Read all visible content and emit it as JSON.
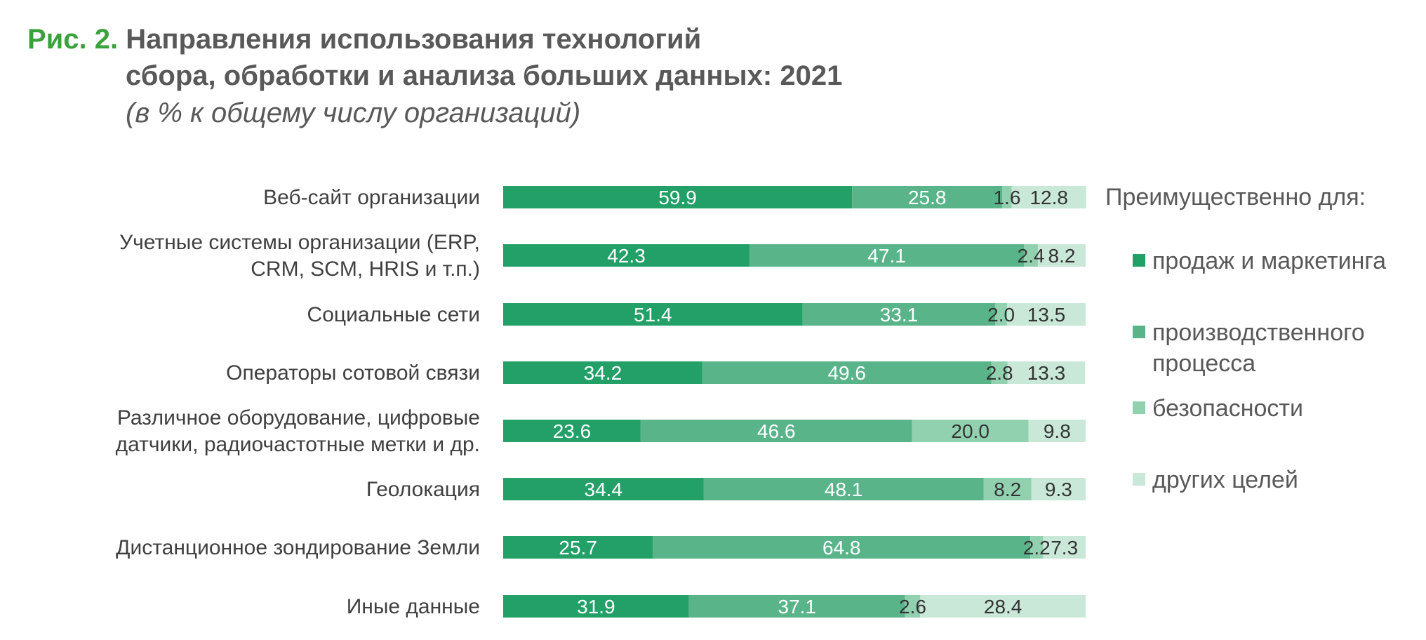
{
  "title": {
    "figure_label": "Рис. 2.",
    "line1": "Направления использования технологий",
    "line2": "сбора, обработки и анализа больших данных: 2021",
    "subtitle": "(в % к общему числу организаций)"
  },
  "colors": {
    "series1": "#23a068",
    "series2": "#5ab48a",
    "series3": "#92d1b0",
    "series4": "#c9e8d8",
    "label_dark": "#333333",
    "label_light": "#ffffff"
  },
  "chart_data": {
    "type": "bar",
    "orientation": "horizontal",
    "stacked": true,
    "title": "Направления использования технологий сбора, обработки и анализа больших данных: 2021",
    "subtitle": "(в % к общему числу организаций)",
    "categories": [
      [
        "Веб-сайт организации"
      ],
      [
        "Учетные системы организации (ERP,",
        "CRM, SCM, HRIS и т.п.)"
      ],
      [
        "Социальные сети"
      ],
      [
        "Операторы сотовой связи"
      ],
      [
        "Различное оборудование, цифровые",
        "датчики, радиочастотные метки и др."
      ],
      [
        "Геолокация"
      ],
      [
        "Дистанционное зондирование Земли"
      ],
      [
        "Иные данные"
      ]
    ],
    "legend_title": "Преимущественно для:",
    "legend_position": "right",
    "xlim": [
      0,
      100
    ],
    "grid": false,
    "series": [
      {
        "name": "продаж и маркетинга",
        "values": [
          59.9,
          42.3,
          51.4,
          34.2,
          23.6,
          34.4,
          25.7,
          31.9
        ]
      },
      {
        "name": "производственного процесса",
        "values": [
          25.8,
          47.1,
          33.1,
          49.6,
          46.6,
          48.1,
          64.8,
          37.1
        ]
      },
      {
        "name": "безопасности",
        "values": [
          1.6,
          2.4,
          2.0,
          2.8,
          20.0,
          8.2,
          2.2,
          2.6
        ]
      },
      {
        "name": "других целей",
        "values": [
          12.8,
          8.2,
          13.5,
          13.3,
          9.8,
          9.3,
          7.3,
          28.4
        ]
      }
    ]
  }
}
